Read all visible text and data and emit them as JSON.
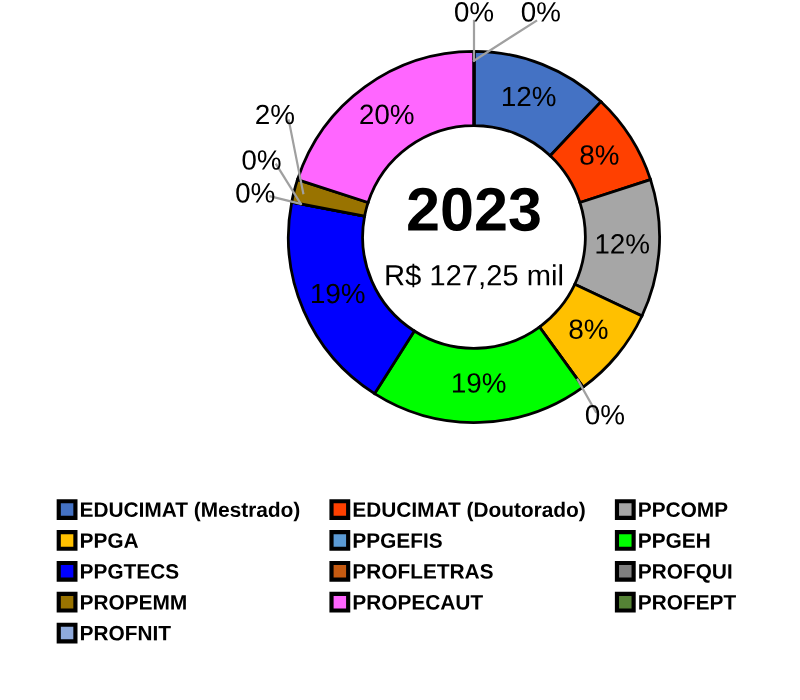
{
  "chart_data": {
    "type": "donut",
    "title": "2023",
    "subtitle": "R$ 127,25 mil",
    "categories": [
      "EDUCIMAT (Mestrado)",
      "EDUCIMAT (Doutorado)",
      "PPCOMP",
      "PPGA",
      "PPGEFIS",
      "PPGEH",
      "PPGTECS",
      "PROFLETRAS",
      "PROFQUI",
      "PROPEMM",
      "PROPECAUT",
      "PROFEPT",
      "PROFNIT"
    ],
    "values": [
      12,
      8,
      12,
      8,
      0,
      19,
      19,
      0,
      0,
      2,
      20,
      0,
      0
    ],
    "value_labels": [
      "12%",
      "8%",
      "12%",
      "8%",
      "0%",
      "19%",
      "19%",
      "0%",
      "0%",
      "2%",
      "20%",
      "0%",
      "0%"
    ],
    "colors": [
      "#4472c4",
      "#ff4000",
      "#a6a6a6",
      "#ffc000",
      "#5b9bd5",
      "#00ff00",
      "#0000ff",
      "#c55a11",
      "#7f7f7f",
      "#997300",
      "#ff66ff",
      "#548235",
      "#8faadc"
    ],
    "legend": "bottom"
  }
}
